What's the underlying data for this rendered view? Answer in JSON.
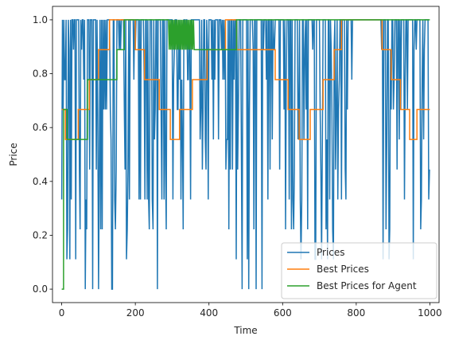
{
  "chart_data": {
    "type": "line",
    "title": "",
    "xlabel": "Time",
    "ylabel": "Price",
    "xlim": [
      -25,
      1025
    ],
    "ylim": [
      -0.05,
      1.05
    ],
    "xticks": [
      0,
      200,
      400,
      600,
      800,
      1000
    ],
    "yticks": [
      0.0,
      0.2,
      0.4,
      0.6,
      0.8,
      1.0
    ],
    "xtick_labels": [
      "0",
      "200",
      "400",
      "600",
      "800",
      "1000"
    ],
    "ytick_labels": [
      "0.0",
      "0.2",
      "0.4",
      "0.6",
      "0.8",
      "1.0"
    ],
    "grid": false,
    "legend_position": "lower-right",
    "price_levels": [
      0.0,
      0.111,
      0.222,
      0.333,
      0.444,
      0.556,
      0.667,
      0.778,
      0.889,
      1.0
    ],
    "series": [
      {
        "name": "Prices",
        "color": "#1f77b4",
        "style": "dense oscillation between discrete price levels",
        "segments": [
          {
            "x_start": 0,
            "x_end": 150,
            "min": 0.0,
            "max": 1.0
          },
          {
            "x_start": 150,
            "x_end": 300,
            "min": 0.0,
            "max": 1.0
          },
          {
            "x_start": 300,
            "x_end": 480,
            "min": 0.111,
            "max": 1.0
          },
          {
            "x_start": 480,
            "x_end": 600,
            "min": 0.0,
            "max": 1.0
          },
          {
            "x_start": 600,
            "x_end": 790,
            "min": 0.111,
            "max": 1.0
          },
          {
            "x_start": 790,
            "x_end": 865,
            "min": 1.0,
            "max": 1.0
          },
          {
            "x_start": 865,
            "x_end": 1000,
            "min": 0.111,
            "max": 1.0
          }
        ]
      },
      {
        "name": "Best Prices",
        "color": "#ff7f0e",
        "x": [
          0,
          10,
          10,
          45,
          45,
          75,
          75,
          100,
          100,
          130,
          130,
          200,
          200,
          225,
          225,
          265,
          265,
          295,
          295,
          320,
          320,
          355,
          355,
          395,
          395,
          420,
          420,
          445,
          445,
          475,
          475,
          580,
          580,
          615,
          615,
          645,
          645,
          675,
          675,
          710,
          710,
          740,
          740,
          760,
          760,
          870,
          870,
          895,
          895,
          920,
          920,
          945,
          945,
          965,
          965,
          990,
          990,
          1000
        ],
        "y": [
          0.667,
          0.667,
          0.556,
          0.556,
          0.667,
          0.667,
          0.778,
          0.778,
          0.889,
          0.889,
          1.0,
          1.0,
          0.889,
          0.889,
          0.778,
          0.778,
          0.667,
          0.667,
          0.556,
          0.556,
          0.667,
          0.667,
          0.778,
          0.778,
          0.889,
          0.889,
          0.889,
          0.889,
          1.0,
          1.0,
          0.889,
          0.889,
          0.778,
          0.778,
          0.667,
          0.667,
          0.556,
          0.556,
          0.667,
          0.667,
          0.778,
          0.778,
          0.889,
          0.889,
          1.0,
          1.0,
          0.889,
          0.889,
          0.778,
          0.778,
          0.667,
          0.667,
          0.556,
          0.556,
          0.667,
          0.667,
          0.667,
          0.667
        ]
      },
      {
        "name": "Best Prices for Agent",
        "color": "#2ca02c",
        "x": [
          0,
          5,
          5,
          15,
          15,
          20,
          20,
          70,
          70,
          150,
          150,
          170,
          170,
          195,
          195,
          290,
          292,
          294,
          296,
          298,
          300,
          302,
          304,
          306,
          308,
          310,
          312,
          314,
          316,
          318,
          320,
          322,
          324,
          326,
          328,
          330,
          332,
          334,
          336,
          338,
          340,
          342,
          344,
          346,
          348,
          350,
          352,
          354,
          356,
          358,
          360,
          360,
          475,
          475,
          1000
        ],
        "y": [
          0.0,
          0.0,
          0.667,
          0.667,
          0.556,
          0.556,
          0.556,
          0.556,
          0.778,
          0.778,
          0.889,
          0.889,
          1.0,
          1.0,
          1.0,
          1.0,
          0.889,
          1.0,
          0.889,
          1.0,
          0.889,
          1.0,
          0.889,
          1.0,
          0.889,
          1.0,
          0.889,
          1.0,
          0.889,
          1.0,
          0.889,
          1.0,
          0.889,
          1.0,
          0.889,
          1.0,
          0.889,
          1.0,
          0.889,
          1.0,
          0.889,
          1.0,
          0.889,
          1.0,
          0.889,
          1.0,
          0.889,
          1.0,
          0.889,
          1.0,
          0.889,
          0.889,
          0.889,
          1.0,
          1.0
        ]
      }
    ]
  }
}
